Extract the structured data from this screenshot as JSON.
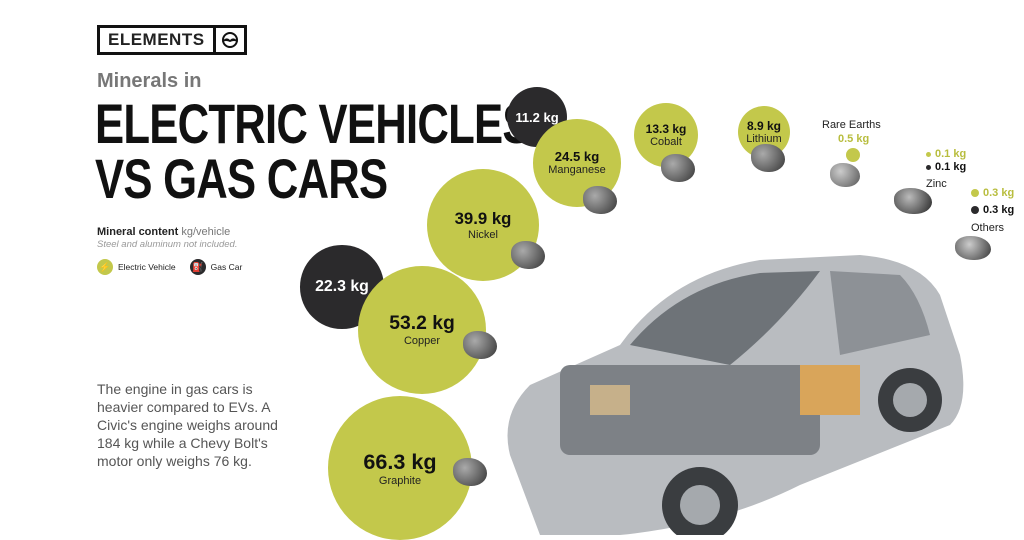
{
  "brand": {
    "logo": "ELEMENTS"
  },
  "header": {
    "subtitle": "Minerals in",
    "title_line1": "ELECTRIC VEHICLES",
    "title_line2": "VS GAS CARS"
  },
  "info": {
    "mineral_content_label": "Mineral content",
    "unit": "kg/vehicle",
    "note": "Steel and aluminum not included."
  },
  "legend": {
    "ev": "Electric Vehicle",
    "gas": "Gas Car"
  },
  "body_text": "The engine in gas cars is heavier compared to EVs. A Civic's engine weighs around 184 kg while a Chevy Bolt's motor only weighs 76 kg.",
  "colors": {
    "ev": "#c3c84b",
    "gas": "#2b2a2c"
  },
  "chart_data": {
    "type": "bubble",
    "unit": "kg",
    "series": [
      {
        "name": "Electric Vehicle",
        "color": "#c3c84b"
      },
      {
        "name": "Gas Car",
        "color": "#2b2a2c"
      }
    ],
    "minerals": [
      {
        "name": "Graphite",
        "ev": 66.3,
        "ev_label": "66.3 kg",
        "gas": null
      },
      {
        "name": "Copper",
        "ev": 53.2,
        "ev_label": "53.2 kg",
        "gas": 22.3,
        "gas_label": "22.3 kg"
      },
      {
        "name": "Nickel",
        "ev": 39.9,
        "ev_label": "39.9 kg",
        "gas": null
      },
      {
        "name": "Manganese",
        "ev": 24.5,
        "ev_label": "24.5 kg",
        "gas": 11.2,
        "gas_label": "11.2 kg"
      },
      {
        "name": "Cobalt",
        "ev": 13.3,
        "ev_label": "13.3 kg",
        "gas": null
      },
      {
        "name": "Lithium",
        "ev": 8.9,
        "ev_label": "8.9 kg",
        "gas": null
      },
      {
        "name": "Rare Earths",
        "ev": 0.5,
        "ev_label": "0.5 kg",
        "gas": null
      },
      {
        "name": "Zinc",
        "ev": 0.1,
        "ev_label": "0.1 kg",
        "gas": 0.1,
        "gas_label": "0.1 kg"
      },
      {
        "name": "Others",
        "ev": 0.3,
        "ev_label": "0.3 kg",
        "gas": 0.3,
        "gas_label": "0.3 kg"
      }
    ]
  }
}
